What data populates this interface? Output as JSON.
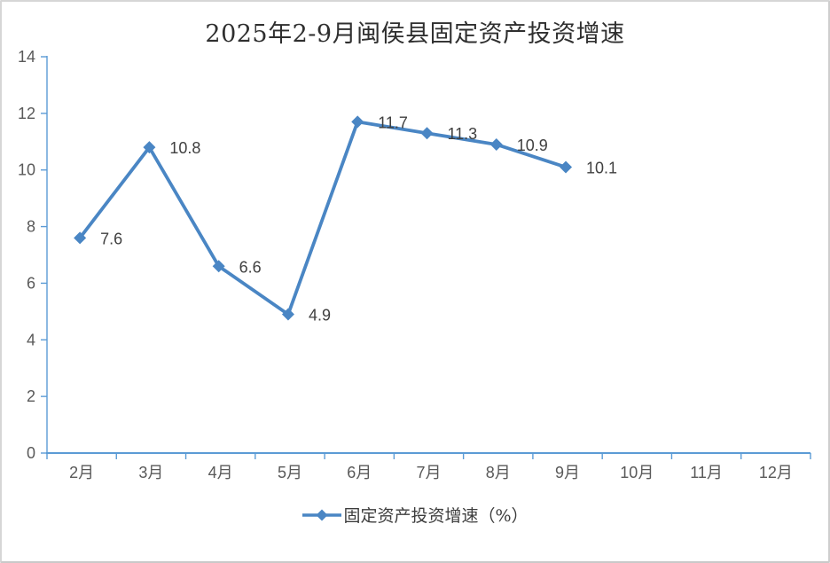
{
  "window": {
    "background": "#ffffff",
    "border_color": "#d6d6d6"
  },
  "title": "2025年2-9月闽侯县固定资产投资增速",
  "legend": {
    "label": "固定资产投资增速（%）"
  },
  "chart_data": {
    "type": "line",
    "title": "2025年2-9月闽侯县固定资产投资增速",
    "categories": [
      "2月",
      "3月",
      "4月",
      "5月",
      "6月",
      "7月",
      "8月",
      "9月",
      "10月",
      "11月",
      "12月"
    ],
    "series": [
      {
        "name": "固定资产投资增速（%）",
        "values": [
          7.6,
          10.8,
          6.6,
          4.9,
          11.7,
          11.3,
          10.9,
          10.1,
          null,
          null,
          null
        ],
        "data_labels": [
          "7.6",
          "10.8",
          "6.6",
          "4.9",
          "11.7",
          "11.3",
          "10.9",
          "10.1"
        ]
      }
    ],
    "xlabel": "",
    "ylabel": "",
    "ylim": [
      0,
      14
    ],
    "yticks": [
      0,
      2,
      4,
      6,
      8,
      10,
      12,
      14
    ],
    "grid": false,
    "marker": "diamond",
    "legend_position": "bottom",
    "colors": {
      "series_line": "#4a86c4",
      "axis_line": "#5b9bd5",
      "tick_label": "#595959",
      "data_label": "#404040",
      "title_text": "#2f2f2f"
    }
  }
}
